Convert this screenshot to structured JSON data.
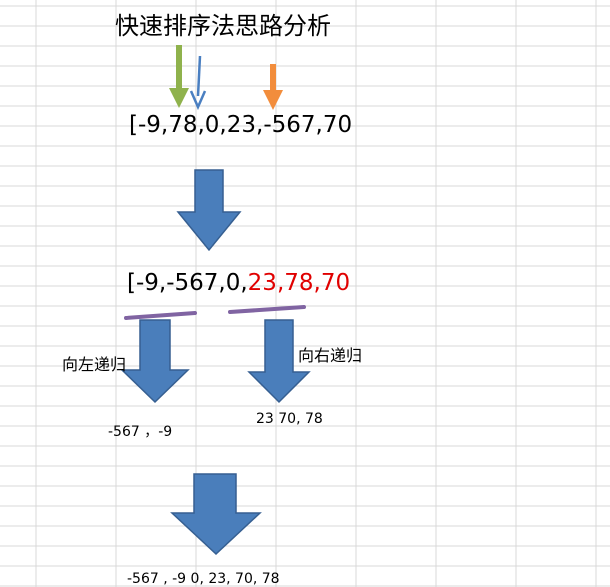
{
  "title": "快速排序法思路分析",
  "initial_array": "[-9,78,0,23,-567,70",
  "partitioned_array": {
    "black_part": "[-9,-567,0,",
    "red_part": "23,78,70"
  },
  "left_label": "向左递归",
  "right_label": "向右递归",
  "left_result": "-567 ，-9",
  "right_result": "23 70, 78",
  "final_result": "-567 , -9  0, 23, 70, 78",
  "colors": {
    "green_pointer": "#8fb24c",
    "blue_pointer": "#4a7fc1",
    "orange_pointer": "#f28d3c",
    "block_arrow_fill": "#4a7ebb",
    "block_arrow_stroke": "#365f91",
    "underline": "#8064a2",
    "highlight_red": "#e00000",
    "gridline": "#d9d9d9"
  }
}
